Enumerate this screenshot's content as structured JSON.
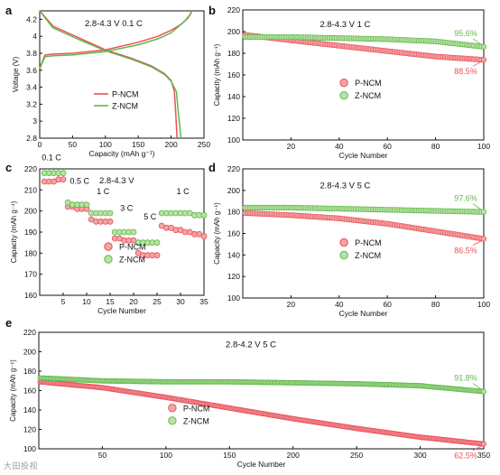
{
  "watermark": "大田投视",
  "colors": {
    "p": "#e8505a",
    "z": "#5fb84a",
    "pFill": "#f4a4a4",
    "zFill": "#b9e2a6",
    "axis": "#111111"
  },
  "chart_data": [
    {
      "id": "a",
      "panel": "a",
      "type": "line",
      "annotation": "2.8-4.3 V 0.1 C",
      "xlabel": "Capacity (mAh g⁻¹)",
      "ylabel": "Voltage (V)",
      "xlim": [
        0,
        250
      ],
      "ylim": [
        2.8,
        4.3
      ],
      "xticks": [
        0,
        50,
        100,
        150,
        200,
        250
      ],
      "yticks": [
        2.8,
        3.0,
        3.2,
        3.4,
        3.6,
        3.8,
        4.0,
        4.2
      ],
      "legend": [
        "P-NCM",
        "Z-NCM"
      ],
      "series": [
        {
          "name": "P-NCM",
          "kind": "charge",
          "x": [
            0,
            8,
            20,
            50,
            100,
            150,
            180,
            200,
            215,
            225,
            230,
            232
          ],
          "y": [
            3.62,
            3.78,
            3.79,
            3.8,
            3.84,
            3.93,
            4.0,
            4.07,
            4.14,
            4.21,
            4.27,
            4.3
          ]
        },
        {
          "name": "P-NCM",
          "kind": "discharge",
          "x": [
            0,
            20,
            60,
            100,
            140,
            170,
            190,
            200,
            205,
            207,
            208,
            209
          ],
          "y": [
            4.3,
            4.12,
            3.98,
            3.84,
            3.74,
            3.65,
            3.56,
            3.48,
            3.35,
            3.1,
            2.95,
            2.8
          ]
        },
        {
          "name": "Z-NCM",
          "kind": "charge",
          "x": [
            0,
            8,
            20,
            50,
            100,
            150,
            180,
            200,
            212,
            222,
            228,
            232
          ],
          "y": [
            3.62,
            3.76,
            3.77,
            3.78,
            3.82,
            3.9,
            3.97,
            4.04,
            4.12,
            4.19,
            4.25,
            4.3
          ]
        },
        {
          "name": "Z-NCM",
          "kind": "discharge",
          "x": [
            0,
            20,
            60,
            100,
            140,
            170,
            190,
            200,
            208,
            211,
            213,
            215
          ],
          "y": [
            4.3,
            4.1,
            3.96,
            3.83,
            3.73,
            3.64,
            3.55,
            3.47,
            3.35,
            3.1,
            2.95,
            2.8
          ]
        }
      ]
    },
    {
      "id": "b",
      "panel": "b",
      "type": "scatter",
      "annotation": "2.8-4.3 V 1 C",
      "xlabel": "Cycle Number",
      "ylabel": "Capacity (mAh g⁻¹)",
      "xlim": [
        0,
        100
      ],
      "ylim": [
        100,
        220
      ],
      "xticks": [
        20,
        40,
        60,
        80,
        100
      ],
      "yticks": [
        100,
        120,
        140,
        160,
        180,
        200,
        220
      ],
      "n": 100,
      "series": [
        {
          "name": "P-NCM",
          "x": [
            1,
            20,
            40,
            60,
            80,
            100
          ],
          "y": [
            197,
            192,
            187,
            182,
            177,
            174
          ]
        },
        {
          "name": "Z-NCM",
          "x": [
            1,
            20,
            40,
            60,
            80,
            100
          ],
          "y": [
            195,
            195,
            194,
            193,
            191,
            186
          ]
        }
      ],
      "labels": [
        {
          "text": "95.6%",
          "series": "Z-NCM"
        },
        {
          "text": "88.5%",
          "series": "P-NCM"
        }
      ]
    },
    {
      "id": "c",
      "panel": "c",
      "type": "scatter",
      "annotation": "2.8-4.3 V",
      "xlabel": "Cycle Number",
      "ylabel": "Capacity (mAh g⁻¹)",
      "xlim": [
        0,
        35
      ],
      "ylim": [
        160,
        220
      ],
      "xticks": [
        5,
        10,
        15,
        20,
        25,
        30,
        35
      ],
      "yticks": [
        160,
        170,
        180,
        190,
        200,
        210,
        220
      ],
      "rates": [
        "0.1 C",
        "0.5 C",
        "1 C",
        "3 C",
        "5 C",
        "1 C"
      ],
      "series": [
        {
          "name": "P-NCM",
          "y": [
            214,
            214,
            214,
            215,
            215,
            202,
            202,
            201,
            201,
            201,
            196,
            195,
            195,
            195,
            195,
            187,
            187,
            186,
            186,
            186,
            180,
            179,
            179,
            179,
            179,
            193,
            192,
            192,
            191,
            191,
            190,
            190,
            189,
            189,
            188
          ]
        },
        {
          "name": "Z-NCM",
          "y": [
            218,
            218,
            218,
            218,
            218,
            204,
            203,
            203,
            203,
            203,
            199,
            199,
            199,
            199,
            199,
            190,
            190,
            190,
            190,
            190,
            185,
            185,
            185,
            185,
            185,
            199,
            199,
            199,
            199,
            199,
            199,
            199,
            198,
            198,
            198
          ]
        }
      ]
    },
    {
      "id": "d",
      "panel": "d",
      "type": "scatter",
      "annotation": "2.8-4.3 V 5 C",
      "xlabel": "Cycle Number",
      "ylabel": "Capacity (mAh g⁻¹)",
      "xlim": [
        0,
        100
      ],
      "ylim": [
        100,
        220
      ],
      "xticks": [
        20,
        40,
        60,
        80,
        100
      ],
      "yticks": [
        100,
        120,
        140,
        160,
        180,
        200,
        220
      ],
      "n": 100,
      "series": [
        {
          "name": "P-NCM",
          "x": [
            1,
            20,
            40,
            60,
            80,
            100
          ],
          "y": [
            179,
            177,
            174,
            169,
            162,
            155
          ]
        },
        {
          "name": "Z-NCM",
          "x": [
            1,
            20,
            40,
            60,
            80,
            100
          ],
          "y": [
            184,
            184,
            183,
            182,
            181,
            180
          ]
        }
      ],
      "labels": [
        {
          "text": "97.6%",
          "series": "Z-NCM"
        },
        {
          "text": "86.5%",
          "series": "P-NCM"
        }
      ]
    },
    {
      "id": "e",
      "panel": "e",
      "type": "scatter",
      "annotation": "2.8-4.2 V 5 C",
      "xlabel": "Cycle Number",
      "ylabel": "Capacity (mAh g⁻¹)",
      "xlim": [
        0,
        350
      ],
      "ylim": [
        100,
        220
      ],
      "xticks": [
        50,
        100,
        150,
        200,
        250,
        300,
        350
      ],
      "yticks": [
        100,
        120,
        140,
        160,
        180,
        200,
        220
      ],
      "n": 350,
      "series": [
        {
          "name": "P-NCM",
          "x": [
            1,
            50,
            100,
            150,
            200,
            250,
            300,
            350
          ],
          "y": [
            169,
            163,
            153,
            142,
            131,
            121,
            112,
            105
          ]
        },
        {
          "name": "Z-NCM",
          "x": [
            1,
            50,
            100,
            150,
            200,
            250,
            300,
            350
          ],
          "y": [
            173,
            170,
            169,
            169,
            168,
            167,
            165,
            159
          ]
        }
      ],
      "labels": [
        {
          "text": "91.8%",
          "series": "Z-NCM"
        },
        {
          "text": "62.5%",
          "series": "P-NCM"
        }
      ]
    }
  ]
}
